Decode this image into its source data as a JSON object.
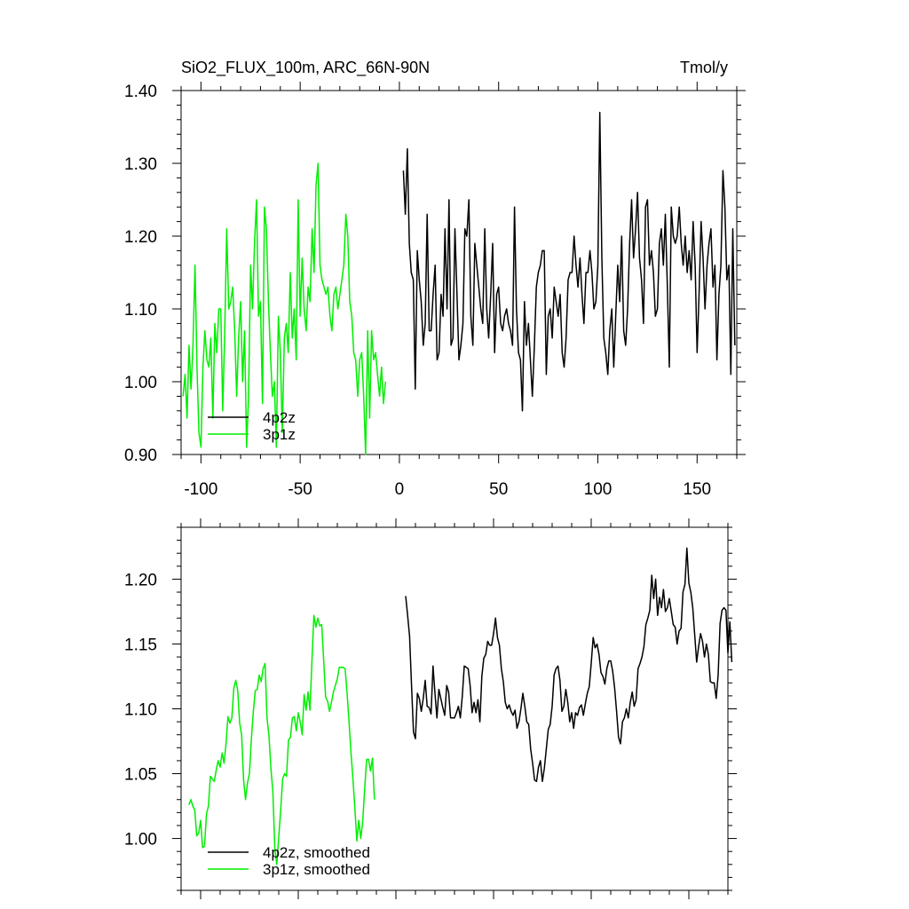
{
  "header": {
    "title": "SiO2_FLUX_100m, ARC_66N-90N",
    "units": "Tmol/y"
  },
  "colors": {
    "black_series": "#000000",
    "green_series": "#00ee00"
  },
  "chart_data": [
    {
      "type": "line",
      "title": "SiO2_FLUX_100m, ARC_66N-90N",
      "units": "Tmol/y",
      "xlim": [
        -110,
        170
      ],
      "ylim": [
        0.9,
        1.4
      ],
      "x_ticks": [
        -100,
        -50,
        0,
        50,
        100,
        150
      ],
      "x_tick_labels": [
        "-100",
        "-50",
        "0",
        "50",
        "100",
        "150"
      ],
      "y_ticks": [
        0.9,
        1.0,
        1.1,
        1.2,
        1.3,
        1.4
      ],
      "y_tick_labels": [
        "0.90",
        "1.00",
        "1.10",
        "1.20",
        "1.30",
        "1.40"
      ],
      "legend_position": "bottom-left",
      "series": [
        {
          "name": "4p2z",
          "color": "#000000",
          "x_start": 2,
          "x_step": 1,
          "values": [
            1.29,
            1.23,
            1.32,
            1.19,
            1.15,
            1.14,
            0.99,
            1.18,
            1.14,
            1.11,
            1.05,
            1.08,
            1.23,
            1.07,
            1.07,
            1.12,
            1.16,
            1.03,
            1.04,
            1.12,
            1.09,
            1.21,
            1.1,
            1.25,
            1.05,
            1.06,
            1.21,
            1.12,
            1.03,
            1.05,
            1.08,
            1.21,
            1.2,
            1.25,
            1.09,
            1.05,
            1.19,
            1.16,
            1.13,
            1.1,
            1.08,
            1.21,
            1.1,
            1.06,
            1.12,
            1.19,
            1.04,
            1.12,
            1.13,
            1.08,
            1.07,
            1.09,
            1.1,
            1.08,
            1.07,
            1.05,
            1.24,
            1.1,
            1.04,
            1.03,
            0.96,
            1.11,
            1.05,
            1.08,
            1.03,
            0.98,
            1.05,
            1.13,
            1.15,
            1.16,
            1.18,
            1.18,
            1.01,
            1.09,
            1.1,
            1.06,
            1.13,
            1.11,
            1.09,
            1.12,
            1.04,
            1.02,
            1.06,
            1.14,
            1.15,
            1.15,
            1.2,
            1.16,
            1.13,
            1.17,
            1.12,
            1.08,
            1.15,
            1.15,
            1.18,
            1.15,
            1.1,
            1.11,
            1.16,
            1.37,
            1.17,
            1.06,
            1.04,
            1.01,
            1.07,
            1.1,
            1.02,
            1.09,
            1.16,
            1.11,
            1.2,
            1.07,
            1.05,
            1.1,
            1.19,
            1.25,
            1.17,
            1.21,
            1.26,
            1.17,
            1.14,
            1.08,
            1.24,
            1.25,
            1.16,
            1.18,
            1.15,
            1.09,
            1.1,
            1.19,
            1.21,
            1.16,
            1.23,
            1.13,
            1.02,
            1.24,
            1.2,
            1.19,
            1.2,
            1.24,
            1.19,
            1.16,
            1.2,
            1.15,
            1.18,
            1.14,
            1.22,
            1.16,
            1.04,
            1.12,
            1.22,
            1.17,
            1.1,
            1.16,
            1.19,
            1.21,
            1.13,
            1.16,
            1.03,
            1.12,
            1.16,
            1.29,
            1.24,
            1.14,
            1.16,
            1.01,
            1.21,
            1.05
          ]
        },
        {
          "name": "3p1z",
          "color": "#00ee00",
          "x_start": -109,
          "x_step": 1,
          "values": [
            0.98,
            1.01,
            0.95,
            1.05,
            0.99,
            1.05,
            1.16,
            1.02,
            0.93,
            0.91,
            1.02,
            1.07,
            1.03,
            1.02,
            1.06,
            0.95,
            1.08,
            1.04,
            1.1,
            1.1,
            0.96,
            1.07,
            1.21,
            1.1,
            1.11,
            1.13,
            1.07,
            0.98,
            1.06,
            1.11,
            1.0,
            1.07,
            0.91,
            0.98,
            1.16,
            1.1,
            1.19,
            1.25,
            1.09,
            1.11,
            0.97,
            1.24,
            1.21,
            1.11,
            1.04,
            0.98,
            1.0,
            0.91,
            1.09,
            1.04,
            0.93,
            1.06,
            1.08,
            1.04,
            1.15,
            1.06,
            1.1,
            1.03,
            1.25,
            1.09,
            1.17,
            1.1,
            1.07,
            1.13,
            1.11,
            1.21,
            1.15,
            1.27,
            1.3,
            1.16,
            1.14,
            1.13,
            1.12,
            1.13,
            1.09,
            1.07,
            1.12,
            1.13,
            1.1,
            1.12,
            1.14,
            1.16,
            1.23,
            1.2,
            1.11,
            1.09,
            1.04,
            1.03,
            0.98,
            1.03,
            1.04,
            0.98,
            0.9,
            1.07,
            0.95,
            1.07,
            1.03,
            1.04,
            1.01,
            0.98,
            1.02,
            0.97,
            1.0
          ]
        }
      ]
    },
    {
      "type": "line",
      "xlim": [
        -110,
        170
      ],
      "ylim": [
        0.96,
        1.24
      ],
      "x_ticks": [
        -100,
        -50,
        0,
        50,
        100,
        150
      ],
      "y_ticks": [
        1.0,
        1.05,
        1.1,
        1.15,
        1.2
      ],
      "y_tick_labels": [
        "1.00",
        "1.05",
        "1.10",
        "1.15",
        "1.20"
      ],
      "legend_position": "bottom-left",
      "series": [
        {
          "name": "4p2z, smoothed",
          "color": "#000000",
          "x_start": 5,
          "x_step": 1,
          "values": [
            1.187,
            1.172,
            1.156,
            1.118,
            1.082,
            1.077,
            1.112,
            1.108,
            1.098,
            1.108,
            1.122,
            1.102,
            1.101,
            1.096,
            1.133,
            1.112,
            1.093,
            1.115,
            1.108,
            1.101,
            1.095,
            1.118,
            1.113,
            1.093,
            1.093,
            1.093,
            1.097,
            1.102,
            1.093,
            1.11,
            1.133,
            1.132,
            1.131,
            1.118,
            1.097,
            1.105,
            1.097,
            1.107,
            1.09,
            1.125,
            1.139,
            1.142,
            1.152,
            1.149,
            1.149,
            1.158,
            1.17,
            1.155,
            1.149,
            1.131,
            1.121,
            1.105,
            1.1,
            1.103,
            1.098,
            1.095,
            1.099,
            1.085,
            1.09,
            1.1,
            1.112,
            1.102,
            1.09,
            1.088,
            1.069,
            1.058,
            1.045,
            1.044,
            1.055,
            1.06,
            1.044,
            1.054,
            1.069,
            1.084,
            1.088,
            1.102,
            1.126,
            1.131,
            1.133,
            1.122,
            1.098,
            1.102,
            1.115,
            1.105,
            1.09,
            1.097,
            1.085,
            1.097,
            1.095,
            1.101,
            1.103,
            1.095,
            1.104,
            1.112,
            1.117,
            1.135,
            1.155,
            1.147,
            1.15,
            1.142,
            1.128,
            1.125,
            1.119,
            1.131,
            1.137,
            1.137,
            1.129,
            1.116,
            1.098,
            1.078,
            1.073,
            1.09,
            1.093,
            1.1,
            1.093,
            1.105,
            1.113,
            1.102,
            1.107,
            1.131,
            1.135,
            1.14,
            1.148,
            1.165,
            1.17,
            1.176,
            1.203,
            1.185,
            1.2,
            1.172,
            1.186,
            1.178,
            1.192,
            1.175,
            1.178,
            1.185,
            1.175,
            1.165,
            1.163,
            1.15,
            1.16,
            1.162,
            1.19,
            1.196,
            1.224,
            1.197,
            1.19,
            1.178,
            1.157,
            1.136,
            1.148,
            1.158,
            1.152,
            1.14,
            1.15,
            1.142,
            1.121,
            1.12,
            1.12,
            1.108,
            1.126,
            1.166,
            1.176,
            1.178,
            1.176,
            1.143,
            1.167,
            1.136
          ]
        },
        {
          "name": "3p1z, smoothed",
          "color": "#00ee00",
          "x_start": -106,
          "x_step": 1,
          "values": [
            1.026,
            1.03,
            1.025,
            1.022,
            1.002,
            1.004,
            1.014,
            0.993,
            0.994,
            1.019,
            1.025,
            1.048,
            1.046,
            1.044,
            1.053,
            1.06,
            1.055,
            1.066,
            1.058,
            1.073,
            1.094,
            1.089,
            1.093,
            1.116,
            1.122,
            1.114,
            1.089,
            1.08,
            1.045,
            1.03,
            1.043,
            1.05,
            1.077,
            1.098,
            1.114,
            1.115,
            1.126,
            1.121,
            1.131,
            1.135,
            1.093,
            1.079,
            1.054,
            1.036,
            0.992,
            0.98,
            1.001,
            1.022,
            1.046,
            1.05,
            1.048,
            1.076,
            1.078,
            1.093,
            1.094,
            1.083,
            1.097,
            1.09,
            1.08,
            1.111,
            1.099,
            1.113,
            1.099,
            1.137,
            1.172,
            1.163,
            1.17,
            1.164,
            1.165,
            1.138,
            1.109,
            1.106,
            1.098,
            1.105,
            1.113,
            1.118,
            1.123,
            1.132,
            1.132,
            1.132,
            1.131,
            1.112,
            1.09,
            1.066,
            1.046,
            1.023,
            0.998,
            1.014,
            1.0,
            1.013,
            1.038,
            1.061,
            1.061,
            1.052,
            1.062,
            1.03
          ]
        }
      ]
    }
  ]
}
